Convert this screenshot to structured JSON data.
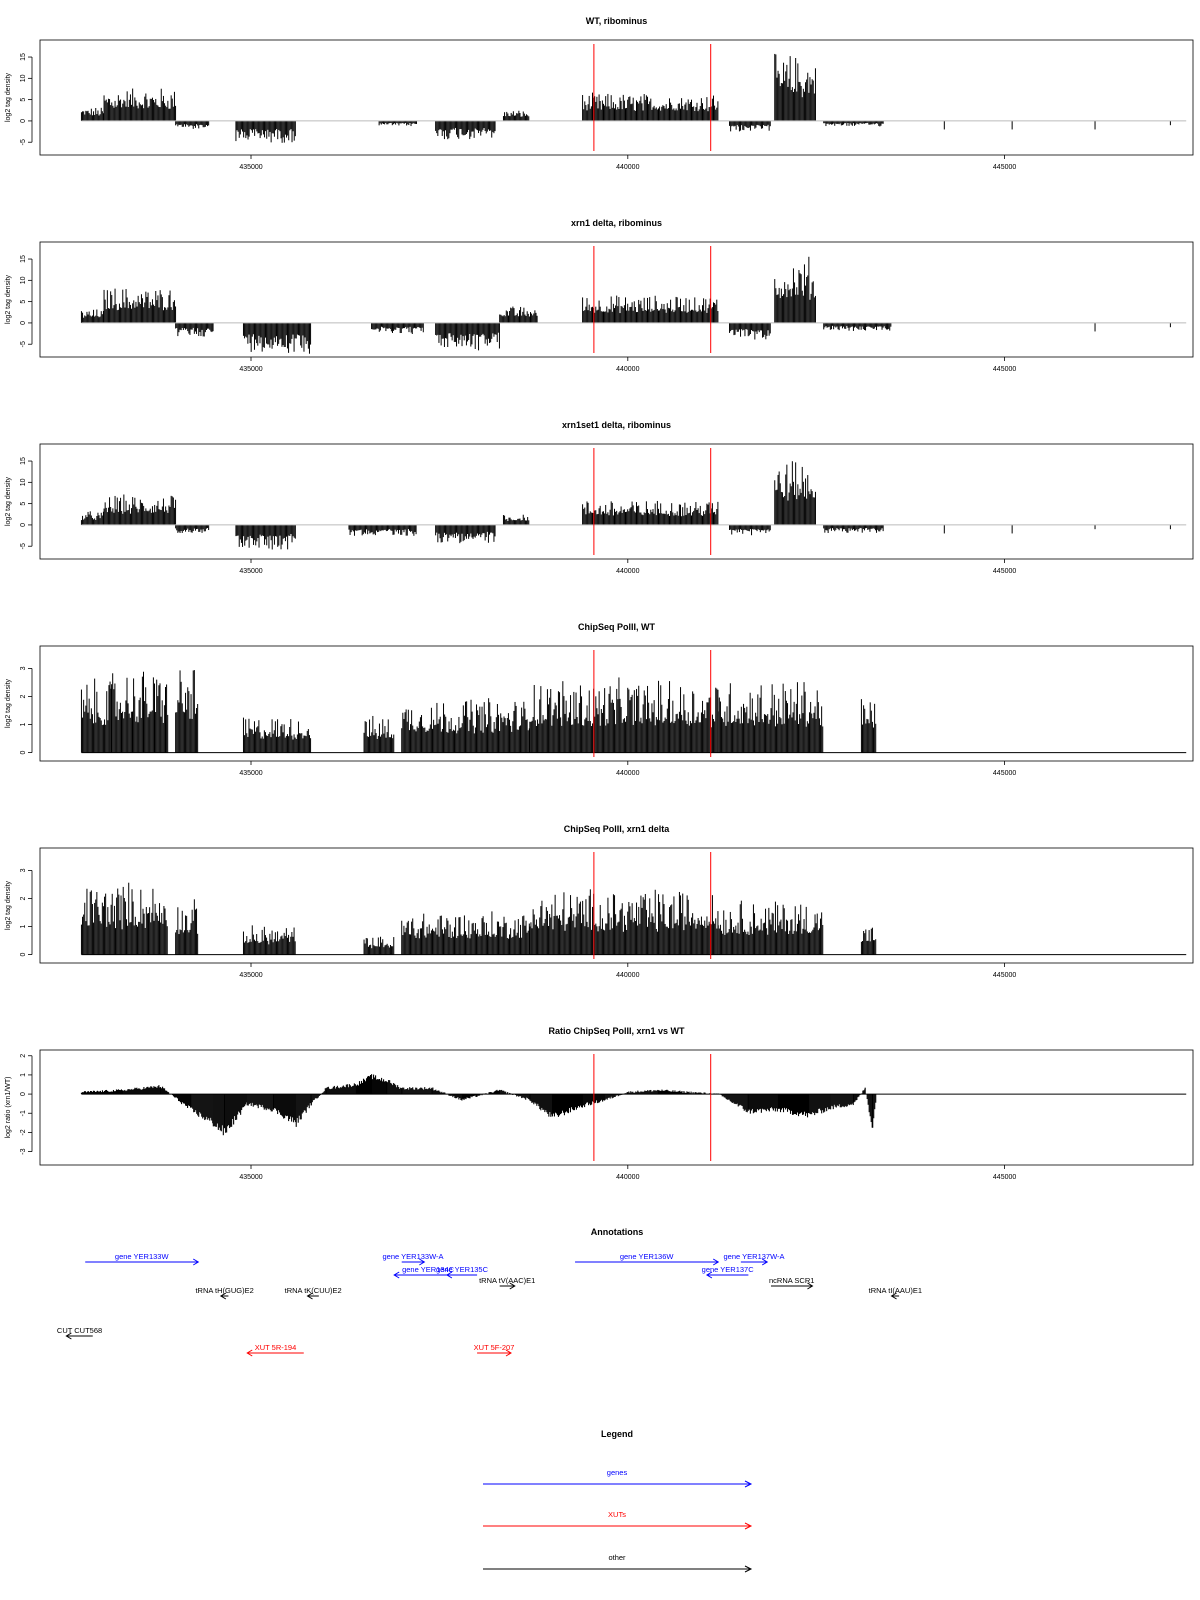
{
  "colors": {
    "highlight": "#ff0000",
    "gene": "#0000ff",
    "xut": "#ff0000",
    "other": "#000000",
    "baseline": "#bbbbbb",
    "bars": "#000000"
  },
  "x_ticks": [
    "435000",
    "440000",
    "445000"
  ],
  "chart_data": [
    {
      "type": "bar",
      "title": "WT, ribominus",
      "ylabel": "log2 tag density",
      "ylim": [
        -8,
        19
      ],
      "yticks": [
        "-5",
        "0",
        "5",
        "10",
        "15"
      ],
      "baseline": "gray",
      "xlim": [
        432200,
        447500
      ],
      "segments": [
        {
          "from": 432750,
          "to": 433050,
          "value": 2.5,
          "sign": "pos"
        },
        {
          "from": 433050,
          "to": 434000,
          "value": 6.0,
          "sign": "pos"
        },
        {
          "from": 434000,
          "to": 434450,
          "value": -1.5,
          "sign": "neg"
        },
        {
          "from": 434800,
          "to": 435600,
          "value": -4.0,
          "sign": "neg"
        },
        {
          "from": 436700,
          "to": 437200,
          "value": -1.0,
          "sign": "neg"
        },
        {
          "from": 437450,
          "to": 438250,
          "value": -3.5,
          "sign": "neg"
        },
        {
          "from": 438350,
          "to": 438700,
          "value": 2.0,
          "sign": "pos"
        },
        {
          "from": 439400,
          "to": 441200,
          "value": 5.0,
          "sign": "pos"
        },
        {
          "from": 441350,
          "to": 441900,
          "value": -2.0,
          "sign": "neg"
        },
        {
          "from": 441950,
          "to": 442500,
          "value": 12.0,
          "sign": "pos"
        },
        {
          "from": 442600,
          "to": 443400,
          "value": -1.0,
          "sign": "neg"
        }
      ],
      "spikes": [
        {
          "x": 444200,
          "value": -2
        },
        {
          "x": 445100,
          "value": -2
        },
        {
          "x": 446200,
          "value": -2
        },
        {
          "x": 447200,
          "value": -1
        }
      ],
      "highlight_x": [
        439550,
        441100
      ]
    },
    {
      "type": "bar",
      "title": "xrn1 delta, ribominus",
      "ylabel": "log2 tag density",
      "ylim": [
        -8,
        19
      ],
      "yticks": [
        "-5",
        "0",
        "5",
        "10",
        "15"
      ],
      "baseline": "gray",
      "xlim": [
        432200,
        447500
      ],
      "segments": [
        {
          "from": 432750,
          "to": 433050,
          "value": 2.5,
          "sign": "pos"
        },
        {
          "from": 433050,
          "to": 434000,
          "value": 6.5,
          "sign": "pos"
        },
        {
          "from": 434000,
          "to": 434500,
          "value": -2.5,
          "sign": "neg"
        },
        {
          "from": 434900,
          "to": 435800,
          "value": -5.5,
          "sign": "neg"
        },
        {
          "from": 436600,
          "to": 437300,
          "value": -2.0,
          "sign": "neg"
        },
        {
          "from": 437450,
          "to": 438300,
          "value": -5.0,
          "sign": "neg"
        },
        {
          "from": 438300,
          "to": 438800,
          "value": 3.0,
          "sign": "pos"
        },
        {
          "from": 439400,
          "to": 441200,
          "value": 5.0,
          "sign": "pos"
        },
        {
          "from": 441350,
          "to": 441900,
          "value": -3.0,
          "sign": "neg"
        },
        {
          "from": 441950,
          "to": 442500,
          "value": 12.0,
          "sign": "pos"
        },
        {
          "from": 442600,
          "to": 443500,
          "value": -1.5,
          "sign": "neg"
        }
      ],
      "spikes": [
        {
          "x": 446200,
          "value": -2
        },
        {
          "x": 447200,
          "value": -1
        }
      ],
      "highlight_x": [
        439550,
        441100
      ]
    },
    {
      "type": "bar",
      "title": "xrn1set1 delta, ribominus",
      "ylabel": "log2 tag density",
      "ylim": [
        -8,
        19
      ],
      "yticks": [
        "-5",
        "0",
        "5",
        "10",
        "15"
      ],
      "baseline": "gray",
      "xlim": [
        432200,
        447500
      ],
      "segments": [
        {
          "from": 432750,
          "to": 433050,
          "value": 2.5,
          "sign": "pos"
        },
        {
          "from": 433050,
          "to": 434000,
          "value": 5.5,
          "sign": "pos"
        },
        {
          "from": 434000,
          "to": 434450,
          "value": -1.5,
          "sign": "neg"
        },
        {
          "from": 434800,
          "to": 435600,
          "value": -4.5,
          "sign": "neg"
        },
        {
          "from": 436300,
          "to": 437200,
          "value": -2.0,
          "sign": "neg"
        },
        {
          "from": 437450,
          "to": 438250,
          "value": -3.5,
          "sign": "neg"
        },
        {
          "from": 438350,
          "to": 438700,
          "value": 2.0,
          "sign": "pos"
        },
        {
          "from": 439400,
          "to": 441200,
          "value": 4.5,
          "sign": "pos"
        },
        {
          "from": 441350,
          "to": 441900,
          "value": -2.0,
          "sign": "neg"
        },
        {
          "from": 441950,
          "to": 442500,
          "value": 12.0,
          "sign": "pos"
        },
        {
          "from": 442600,
          "to": 443400,
          "value": -1.5,
          "sign": "neg"
        }
      ],
      "spikes": [
        {
          "x": 444200,
          "value": -2
        },
        {
          "x": 445100,
          "value": -2
        },
        {
          "x": 446200,
          "value": -1
        },
        {
          "x": 447200,
          "value": -1
        }
      ],
      "highlight_x": [
        439550,
        441100
      ]
    },
    {
      "type": "bar",
      "title": "ChipSeq PolII, WT",
      "ylabel": "log2 tag density",
      "ylim": [
        -0.3,
        3.8
      ],
      "yticks": [
        "0",
        "1",
        "2",
        "3"
      ],
      "baseline": "black",
      "xlim": [
        432200,
        447500
      ],
      "segments": [
        {
          "from": 432750,
          "to": 433150,
          "value": 2.0,
          "sign": "pos"
        },
        {
          "from": 433150,
          "to": 433900,
          "value": 2.3,
          "sign": "pos"
        },
        {
          "from": 434000,
          "to": 434300,
          "value": 2.4,
          "sign": "pos"
        },
        {
          "from": 434900,
          "to": 435800,
          "value": 1.0,
          "sign": "pos"
        },
        {
          "from": 436500,
          "to": 436900,
          "value": 1.0,
          "sign": "pos"
        },
        {
          "from": 437000,
          "to": 438700,
          "value": 1.5,
          "sign": "pos"
        },
        {
          "from": 438700,
          "to": 441200,
          "value": 2.0,
          "sign": "pos"
        },
        {
          "from": 441200,
          "to": 442600,
          "value": 2.0,
          "sign": "pos"
        },
        {
          "from": 443100,
          "to": 443300,
          "value": 1.5,
          "sign": "pos"
        }
      ],
      "spikes": [],
      "highlight_x": [
        439550,
        441100
      ]
    },
    {
      "type": "bar",
      "title": "ChipSeq PolII, xrn1 delta",
      "ylabel": "log2 tag density",
      "ylim": [
        -0.3,
        3.8
      ],
      "yticks": [
        "0",
        "1",
        "2",
        "3"
      ],
      "baseline": "black",
      "xlim": [
        432200,
        447500
      ],
      "segments": [
        {
          "from": 432750,
          "to": 433100,
          "value": 2.0,
          "sign": "pos"
        },
        {
          "from": 433100,
          "to": 433900,
          "value": 2.0,
          "sign": "pos"
        },
        {
          "from": 434000,
          "to": 434300,
          "value": 1.5,
          "sign": "pos"
        },
        {
          "from": 434900,
          "to": 435600,
          "value": 0.8,
          "sign": "pos"
        },
        {
          "from": 436500,
          "to": 436900,
          "value": 0.5,
          "sign": "pos"
        },
        {
          "from": 437000,
          "to": 438700,
          "value": 1.2,
          "sign": "pos"
        },
        {
          "from": 438700,
          "to": 441200,
          "value": 1.8,
          "sign": "pos"
        },
        {
          "from": 441200,
          "to": 442600,
          "value": 1.5,
          "sign": "pos"
        },
        {
          "from": 443100,
          "to": 443300,
          "value": 0.8,
          "sign": "pos"
        }
      ],
      "spikes": [],
      "highlight_x": [
        439550,
        441100
      ]
    },
    {
      "type": "area",
      "title": "Ratio ChipSeq PolII, xrn1 vs WT",
      "ylabel": "log2 ratio (xrn1/WT)",
      "ylim": [
        -3.7,
        2.3
      ],
      "yticks": [
        "-3",
        "-2",
        "-1",
        "0",
        "1",
        "2"
      ],
      "baseline": "black",
      "xlim": [
        432200,
        447500
      ],
      "x": [
        432750,
        433300,
        433800,
        434200,
        434500,
        434650,
        434950,
        435300,
        435600,
        435800,
        436000,
        436400,
        436600,
        436800,
        437000,
        437400,
        437800,
        438300,
        438700,
        439000,
        439400,
        439700,
        440000,
        440400,
        440800,
        441200,
        441600,
        442000,
        442400,
        442700,
        443000,
        443150,
        443250,
        443300
      ],
      "y": [
        0.1,
        0.2,
        0.4,
        -0.8,
        -1.5,
        -2.0,
        -0.5,
        -0.8,
        -1.5,
        -0.5,
        0.3,
        0.5,
        0.9,
        0.7,
        0.3,
        0.3,
        -0.3,
        0.2,
        -0.3,
        -1.2,
        -0.6,
        -0.3,
        0.1,
        0.2,
        0.1,
        0.0,
        -0.9,
        -0.8,
        -1.1,
        -0.7,
        -0.5,
        0.3,
        -1.8,
        0.0
      ],
      "highlight_x": [
        439550,
        441100
      ]
    }
  ],
  "annotations": {
    "title": "Annotations",
    "features": [
      {
        "label": "gene YER133W",
        "kind": "gene",
        "start": 432800,
        "end": 434300,
        "dir": "right",
        "row": 0
      },
      {
        "label": "gene YER133W-A",
        "kind": "gene",
        "start": 437000,
        "end": 437300,
        "dir": "right",
        "row": 0
      },
      {
        "label": "gene YER134C",
        "kind": "gene",
        "start": 436900,
        "end": 437800,
        "dir": "left",
        "row": 1
      },
      {
        "label": "gene YER135C",
        "kind": "gene",
        "start": 437600,
        "end": 438000,
        "dir": "left",
        "row": 1
      },
      {
        "label": "tRNA tV(AAC)E1",
        "kind": "other",
        "start": 438300,
        "end": 438500,
        "dir": "right",
        "row": 2
      },
      {
        "label": "gene YER136W",
        "kind": "gene",
        "start": 439300,
        "end": 441200,
        "dir": "right",
        "row": 0
      },
      {
        "label": "gene YER137W-A",
        "kind": "gene",
        "start": 441500,
        "end": 441850,
        "dir": "right",
        "row": 0
      },
      {
        "label": "gene YER137C",
        "kind": "gene",
        "start": 441050,
        "end": 441600,
        "dir": "left",
        "row": 1
      },
      {
        "label": "ncRNA SCR1",
        "kind": "other",
        "start": 441900,
        "end": 442450,
        "dir": "right",
        "row": 2
      },
      {
        "label": "tRNA tH(GUG)E2",
        "kind": "other",
        "start": 434600,
        "end": 434700,
        "dir": "left",
        "row": 3
      },
      {
        "label": "tRNA tK(CUU)E2",
        "kind": "other",
        "start": 435750,
        "end": 435900,
        "dir": "left",
        "row": 3
      },
      {
        "label": "tRNA tI(AAU)E1",
        "kind": "other",
        "start": 443500,
        "end": 443600,
        "dir": "left",
        "row": 3
      },
      {
        "label": "CUT CUT568",
        "kind": "other",
        "start": 432550,
        "end": 432900,
        "dir": "left",
        "row": 4
      },
      {
        "label": "XUT 5R-194",
        "kind": "xut",
        "start": 434950,
        "end": 435700,
        "dir": "left",
        "row": 5
      },
      {
        "label": "XUT 5F-207",
        "kind": "xut",
        "start": 438000,
        "end": 438450,
        "dir": "right",
        "row": 5
      }
    ]
  },
  "legend": {
    "title": "Legend",
    "items": [
      {
        "label": "genes",
        "kind": "gene"
      },
      {
        "label": "XUTs",
        "kind": "xut"
      },
      {
        "label": "other",
        "kind": "other"
      }
    ]
  }
}
